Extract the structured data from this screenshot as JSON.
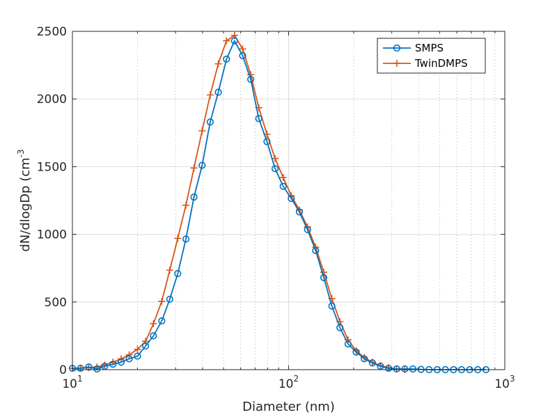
{
  "chart_data": {
    "type": "line",
    "xlabel": "Diameter (nm)",
    "ylabel_main": "dN/dlogDp (cm",
    "ylabel_sup": "-3",
    "x_scale": "log",
    "xlim": [
      10,
      1000
    ],
    "ylim": [
      0,
      2500
    ],
    "grid": "on",
    "legend_position": "top-right",
    "y_ticks": [
      {
        "value": 0,
        "label": "0"
      },
      {
        "value": 500,
        "label": "500"
      },
      {
        "value": 1000,
        "label": "1000"
      },
      {
        "value": 1500,
        "label": "1500"
      },
      {
        "value": 2000,
        "label": "2000"
      },
      {
        "value": 2500,
        "label": "2500"
      }
    ],
    "x_ticks": [
      {
        "value": 10,
        "base": "10",
        "exp": "1"
      },
      {
        "value": 100,
        "base": "10",
        "exp": "2"
      },
      {
        "value": 1000,
        "base": "10",
        "exp": "3"
      }
    ],
    "series": [
      {
        "name": "SMPS",
        "color": "#0072BD",
        "marker": "circle",
        "x": [
          10,
          10.9,
          11.9,
          13,
          14.1,
          15.4,
          16.8,
          18.3,
          20,
          21.8,
          23.7,
          25.9,
          28.2,
          30.7,
          33.5,
          36.5,
          39.8,
          43.4,
          47.3,
          51.6,
          56.2,
          61.3,
          66.8,
          72.8,
          79.4,
          86.6,
          94.4,
          102.9,
          112.2,
          122.3,
          133.4,
          145.4,
          158.5,
          172.8,
          188.4,
          205.4,
          223.9,
          244.1,
          266.1,
          290.1,
          316.2,
          344.8,
          375.8,
          409.7,
          446.7,
          487,
          531,
          578.9,
          631.1,
          688.1,
          750.1,
          817.8
        ],
        "y": [
          10,
          10,
          20,
          5,
          25,
          40,
          55,
          80,
          100,
          175,
          250,
          360,
          520,
          710,
          965,
          1275,
          1510,
          1830,
          2050,
          2295,
          2430,
          2320,
          2145,
          1855,
          1685,
          1485,
          1355,
          1265,
          1165,
          1035,
          880,
          680,
          470,
          310,
          190,
          130,
          80,
          50,
          25,
          10,
          5,
          5,
          5,
          2,
          0,
          0,
          0,
          0,
          0,
          0,
          0,
          0
        ]
      },
      {
        "name": "TwinDMPS",
        "color": "#D95319",
        "marker": "plus",
        "x": [
          10,
          10.9,
          11.9,
          13,
          14.1,
          15.4,
          16.8,
          18.3,
          20,
          21.8,
          23.7,
          25.9,
          28.2,
          30.7,
          33.5,
          36.5,
          39.8,
          43.4,
          47.3,
          51.6,
          56.2,
          61.3,
          66.8,
          72.8,
          79.4,
          86.6,
          94.4,
          102.9,
          112.2,
          122.3,
          133.4,
          145.4,
          158.5,
          172.8,
          188.4,
          205.4,
          223.9,
          244.1,
          266.1,
          290.1,
          316.2,
          344.8
        ],
        "y": [
          10,
          12,
          15,
          20,
          35,
          55,
          80,
          110,
          150,
          210,
          340,
          505,
          735,
          970,
          1215,
          1490,
          1765,
          2030,
          2260,
          2430,
          2470,
          2370,
          2180,
          1935,
          1740,
          1560,
          1420,
          1285,
          1180,
          1055,
          905,
          720,
          525,
          355,
          220,
          140,
          90,
          55,
          30,
          15,
          5,
          0
        ]
      }
    ]
  }
}
